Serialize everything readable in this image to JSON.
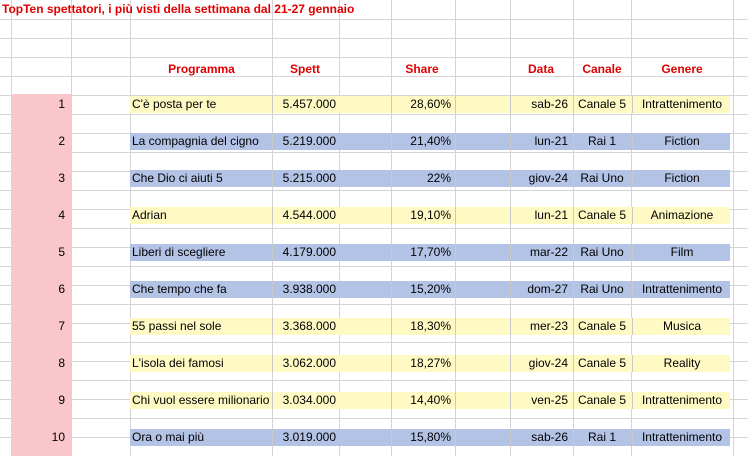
{
  "title": "TopTen spettatori, i più visti della settimana dal 21-27 gennaio",
  "headers": {
    "programma": "Programma",
    "spett": "Spett",
    "share": "Share",
    "data": "Data",
    "canale": "Canale",
    "genere": "Genere"
  },
  "colors": {
    "title": "#e00000",
    "rank_bg": "#f9c6cc",
    "row_yellow": "#fff9c4",
    "row_blue": "#b3c3e6"
  },
  "rows": [
    {
      "rank": "1",
      "programma": "C'è posta per te",
      "spett": "5.457.000",
      "share": "28,60%",
      "data": "sab-26",
      "canale": "Canale 5",
      "genere": "Intrattenimento",
      "color": "yellow"
    },
    {
      "rank": "2",
      "programma": "La compagnia del cigno",
      "spett": "5.219.000",
      "share": "21,40%",
      "data": "lun-21",
      "canale": "Rai 1",
      "genere": "Fiction",
      "color": "blue"
    },
    {
      "rank": "3",
      "programma": "Che Dio ci aiuti 5",
      "spett": "5.215.000",
      "share": "22%",
      "data": "giov-24",
      "canale": "Rai Uno",
      "genere": "Fiction",
      "color": "blue"
    },
    {
      "rank": "4",
      "programma": "Adrian",
      "spett": "4.544.000",
      "share": "19,10%",
      "data": "lun-21",
      "canale": "Canale 5",
      "genere": "Animazione",
      "color": "yellow"
    },
    {
      "rank": "5",
      "programma": "Liberi di scegliere",
      "spett": "4.179.000",
      "share": "17,70%",
      "data": "mar-22",
      "canale": "Rai Uno",
      "genere": "Film",
      "color": "blue"
    },
    {
      "rank": "6",
      "programma": "Che tempo che fa",
      "spett": "3.938.000",
      "share": "15,20%",
      "data": "dom-27",
      "canale": "Rai Uno",
      "genere": "Intrattenimento",
      "color": "blue"
    },
    {
      "rank": "7",
      "programma": "55 passi nel sole",
      "spett": "3.368.000",
      "share": "18,30%",
      "data": "mer-23",
      "canale": "Canale 5",
      "genere": "Musica",
      "color": "yellow"
    },
    {
      "rank": "8",
      "programma": "L'isola dei famosi",
      "spett": "3.062.000",
      "share": "18,27%",
      "data": "giov-24",
      "canale": "Canale 5",
      "genere": "Reality",
      "color": "yellow"
    },
    {
      "rank": "9",
      "programma": "Chi vuol essere milionario",
      "spett": "3.034.000",
      "share": "14,40%",
      "data": "ven-25",
      "canale": "Canale 5",
      "genere": "Intrattenimento",
      "color": "yellow"
    },
    {
      "rank": "10",
      "programma": "Ora o mai più",
      "spett": "3.019.000",
      "share": "15,80%",
      "data": "sab-26",
      "canale": "Rai 1",
      "genere": "Intrattenimento",
      "color": "blue"
    }
  ]
}
